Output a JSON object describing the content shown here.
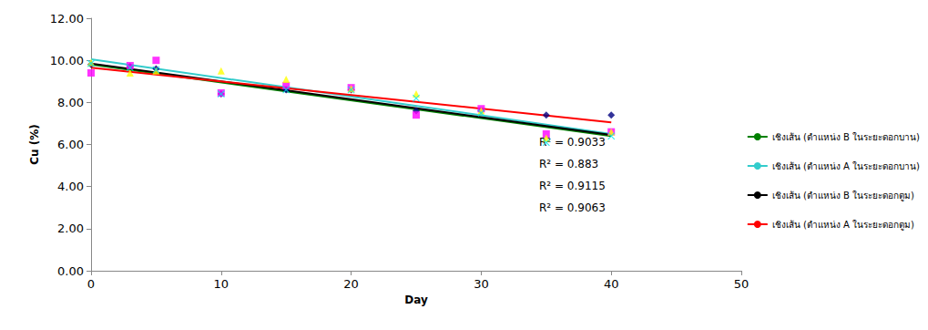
{
  "chart_data": {
    "type": "scatter",
    "x_label": "Day",
    "y_label": "Cu (%)",
    "x": [
      0,
      3,
      5,
      10,
      15,
      20,
      25,
      30,
      35,
      40
    ],
    "xlim": [
      0,
      50
    ],
    "xticks": [
      0,
      10,
      20,
      30,
      40,
      50
    ],
    "ylim": [
      0,
      12
    ],
    "yticks": [
      {
        "value": 0,
        "label": "0.00"
      },
      {
        "value": 2,
        "label": "2.00"
      },
      {
        "value": 4,
        "label": "4.00"
      },
      {
        "value": 6,
        "label": "6.00"
      },
      {
        "value": 8,
        "label": "8.00"
      },
      {
        "value": 10,
        "label": "10.00"
      },
      {
        "value": 12,
        "label": "12.00"
      }
    ],
    "grid": false,
    "legend": "right",
    "series": [
      {
        "type": "scatter",
        "marker": "diamond",
        "color": "#000080",
        "values": [
          9.8,
          9.7,
          9.6,
          8.4,
          8.6,
          8.6,
          7.6,
          7.6,
          7.4,
          7.4
        ]
      },
      {
        "type": "scatter",
        "marker": "square",
        "color": "#ff00ff",
        "values": [
          9.4,
          9.75,
          10.0,
          8.45,
          8.8,
          8.7,
          7.4,
          7.7,
          6.5,
          6.6
        ]
      },
      {
        "type": "scatter",
        "marker": "triangle",
        "color": "#ffff00",
        "values": [
          9.9,
          9.4,
          9.5,
          9.5,
          9.1,
          8.65,
          8.4,
          7.6,
          6.3,
          6.6
        ]
      },
      {
        "type": "scatter",
        "marker": "x",
        "color": "#00e5ee",
        "values": [
          9.85,
          9.65,
          9.55,
          8.4,
          8.6,
          8.6,
          8.2,
          7.5,
          6.1,
          6.4
        ]
      },
      {
        "type": "line",
        "name": "เชิงเส้น (ตำแหน่ง B ในระยะดอกบาน)",
        "color": "#008000",
        "x": [
          0,
          40
        ],
        "values": [
          9.8,
          6.4
        ]
      },
      {
        "type": "line",
        "name": "เชิงเส้น (ตำแหน่ง A ในระยะดอกบาน)",
        "color": "#33cccc",
        "x": [
          0,
          40
        ],
        "values": [
          10.05,
          6.5
        ]
      },
      {
        "type": "line",
        "name": "เชิงเส้น (ตำแหน่ง B ในระยะดอกตูม)",
        "color": "#000000",
        "x": [
          0,
          40
        ],
        "values": [
          9.85,
          6.45
        ]
      },
      {
        "type": "line",
        "name": "เชิงเส้น (ตำแหน่ง A ในระยะดอกตูม)",
        "color": "#ff0000",
        "x": [
          0,
          40
        ],
        "values": [
          9.65,
          7.05
        ]
      }
    ],
    "annotations": [
      "R² = 0.9033",
      "R² = 0.883",
      "R² = 0.9115",
      "R² = 0.9063"
    ]
  }
}
